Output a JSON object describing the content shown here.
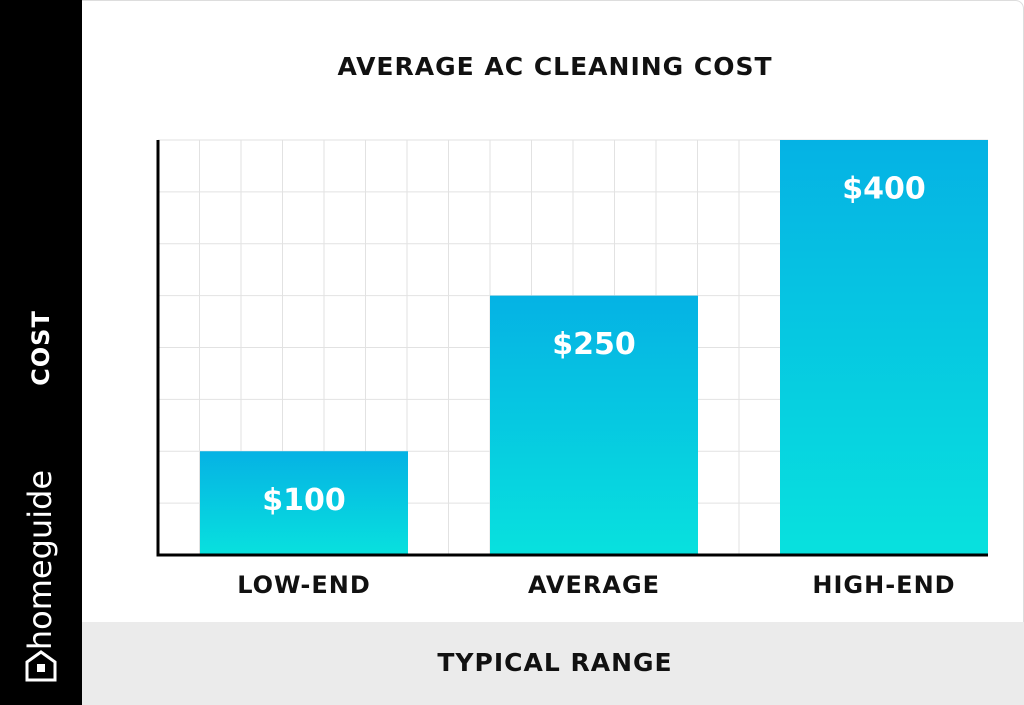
{
  "brand": "homeguide",
  "chart_data": {
    "type": "bar",
    "title": "AVERAGE AC CLEANING COST",
    "x_label": "TYPICAL RANGE",
    "y_label": "COST",
    "categories": [
      "LOW-END",
      "AVERAGE",
      "HIGH-END"
    ],
    "values": [
      100,
      250,
      400
    ],
    "value_labels": [
      "$100",
      "$250",
      "$400"
    ],
    "color": "#05b2e4",
    "color_end": "#08e1de",
    "ylim": [
      0,
      400
    ],
    "yticks": [
      0,
      50,
      100,
      150,
      200,
      250,
      300,
      350,
      400
    ],
    "grid": true
  }
}
